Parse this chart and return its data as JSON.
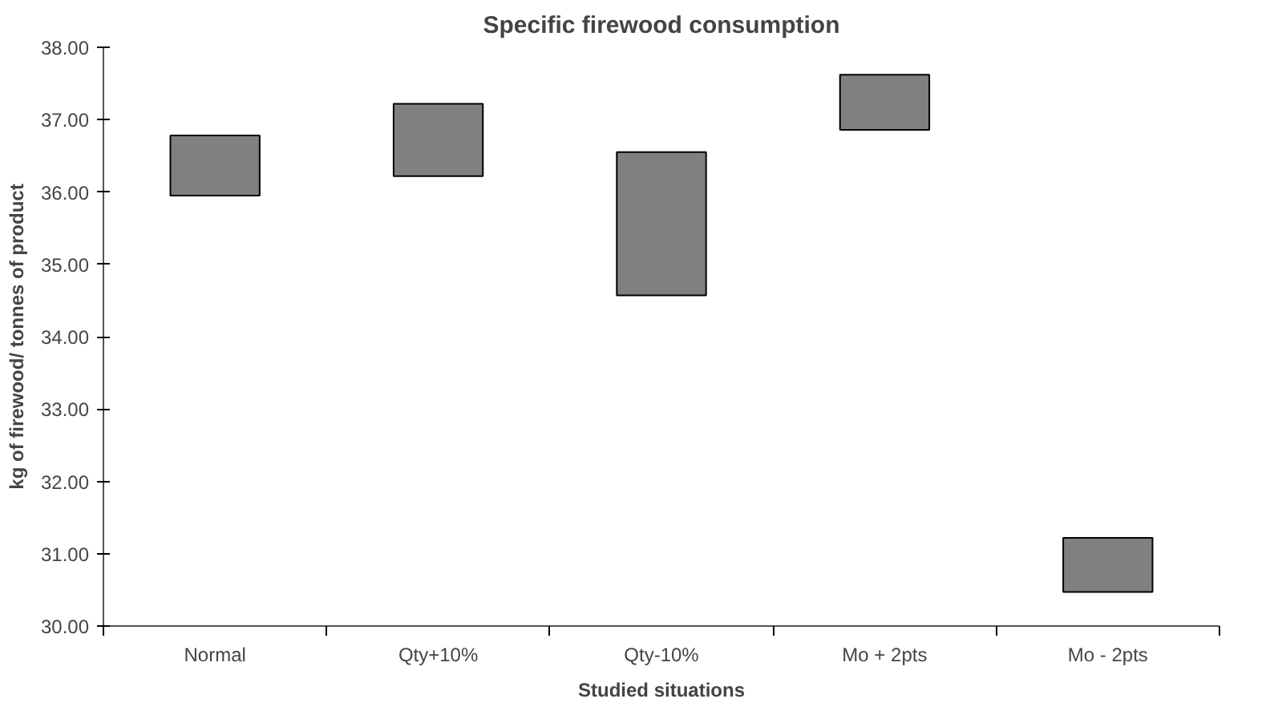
{
  "chart_data": {
    "type": "bar",
    "title": "Specific firewood consumption",
    "xlabel": "Studied situations",
    "ylabel": "kg of firewood/ tonnes of product",
    "categories": [
      "Normal",
      "Qty+10%",
      "Qty-10%",
      "Mo + 2pts",
      "Mo - 2pts"
    ],
    "base": [
      35.95,
      36.22,
      34.57,
      36.86,
      30.47
    ],
    "values": [
      0.83,
      1.0,
      1.98,
      0.76,
      0.75
    ],
    "color": "#808080",
    "ylim": [
      30,
      38
    ],
    "yticks": [
      {
        "value": 30,
        "label": "30.00"
      },
      {
        "value": 31,
        "label": "31.00"
      },
      {
        "value": 32,
        "label": "32.00"
      },
      {
        "value": 33,
        "label": "33.00"
      },
      {
        "value": 34,
        "label": "34.00"
      },
      {
        "value": 35,
        "label": "35.00"
      },
      {
        "value": 36,
        "label": "36.00"
      },
      {
        "value": 37,
        "label": "37.00"
      },
      {
        "value": 38,
        "label": "38.00"
      }
    ],
    "grid": false
  }
}
